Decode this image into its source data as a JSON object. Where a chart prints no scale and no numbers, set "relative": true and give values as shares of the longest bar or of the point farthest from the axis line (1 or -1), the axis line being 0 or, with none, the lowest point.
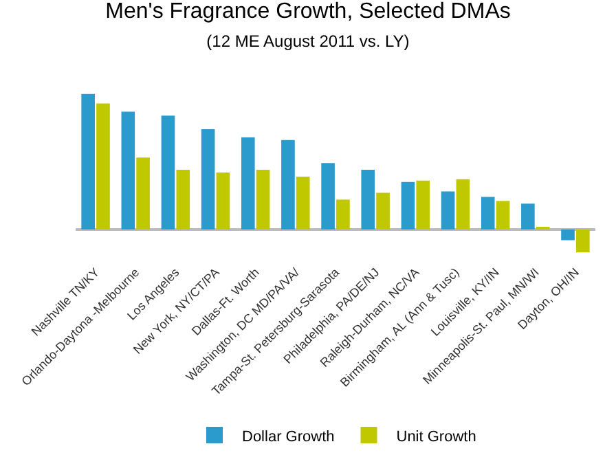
{
  "chart_data": {
    "type": "bar",
    "title": "Men's Fragrance Growth, Selected DMAs",
    "subtitle": "(12 ME August 2011 vs. LY)",
    "categories": [
      "Nashville TN/KY",
      "Orlando-Daytona -Melbourne",
      "Los Angeles",
      "New York, NY/CT/PA",
      "Dallas-Ft. Worth",
      "Washington, DC MD/PA/VA/",
      "Tampa-St. Petersburg-Sarasota",
      "Philadelphia, PA/DE/NJ",
      "Raleigh-Durham, NC/VA",
      "Birmingham, AL (Ann & Tusc)",
      "Louisville, KY/IN",
      "Minneapolis-St. Paul, MN/WI",
      "Dayton, OH/IN"
    ],
    "series": [
      {
        "name": "Dollar Growth",
        "color": "#2a9bcc",
        "values": [
          1.0,
          0.87,
          0.84,
          0.74,
          0.68,
          0.66,
          0.49,
          0.44,
          0.35,
          0.28,
          0.24,
          0.19,
          -0.08
        ]
      },
      {
        "name": "Unit Growth",
        "color": "#c0c800",
        "values": [
          0.93,
          0.53,
          0.44,
          0.42,
          0.44,
          0.39,
          0.22,
          0.27,
          0.36,
          0.37,
          0.21,
          0.01,
          -0.17
        ]
      }
    ],
    "relative": true,
    "legend": "bottom"
  }
}
